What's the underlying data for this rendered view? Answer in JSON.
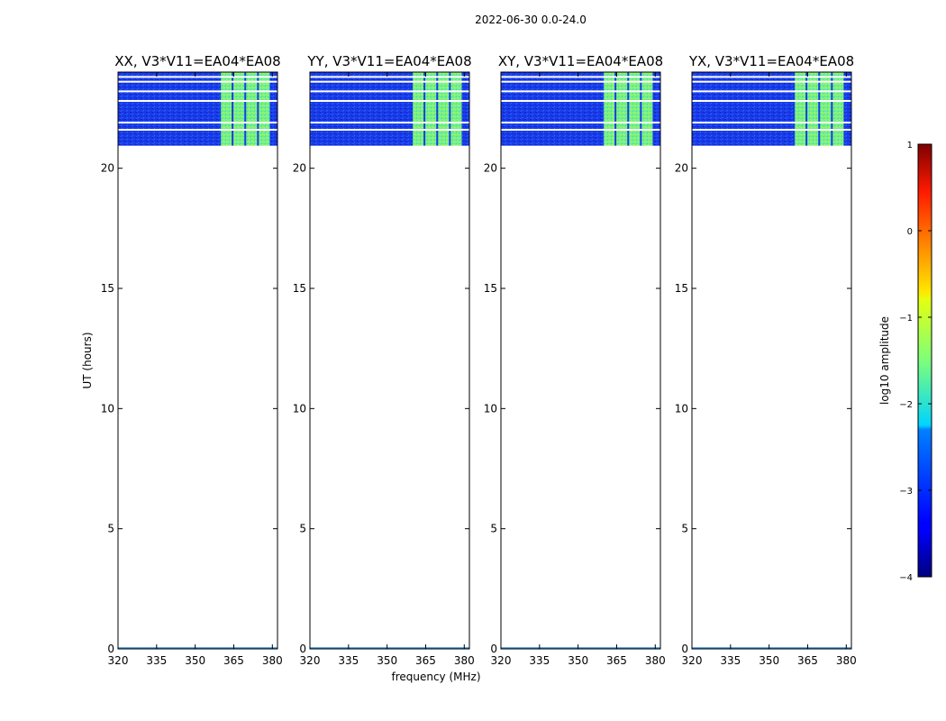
{
  "figure": {
    "suptitle": "2022-06-30 0.0-24.0"
  },
  "chart_data": {
    "type": "heatmap",
    "subplot_count": 4,
    "xlabel": "frequency (MHz)",
    "ylabel": "UT (hours)",
    "xlim": [
      320,
      382
    ],
    "ylim": [
      0,
      24
    ],
    "x_ticks": [
      320,
      335,
      350,
      365,
      380
    ],
    "y_ticks": [
      0,
      5,
      10,
      15,
      20
    ],
    "panels": [
      {
        "title": "XX, V3*V11=EA04*EA08"
      },
      {
        "title": "YY, V3*V11=EA04*EA08"
      },
      {
        "title": "XY, V3*V11=EA04*EA08"
      },
      {
        "title": "YX, V3*V11=EA04*EA08"
      }
    ],
    "data_time_range_hours": [
      20.9,
      24.0
    ],
    "background_log10_amplitude": -3,
    "rfi_band_mhz": [
      360,
      379
    ],
    "rfi_band_log10_amplitude": -1.3,
    "flagged_rows_hours": [
      20.9,
      21.6,
      21.9,
      22.8,
      23.2,
      23.6,
      23.8
    ],
    "colorbar": {
      "label": "log10 amplitude",
      "range": [
        -4,
        1
      ],
      "ticks": [
        -4,
        -3,
        -2,
        -1,
        0,
        1
      ],
      "tick_labels": [
        "−4",
        "−3",
        "−2",
        "−1",
        "0",
        "1"
      ],
      "colormap": "jet"
    }
  }
}
